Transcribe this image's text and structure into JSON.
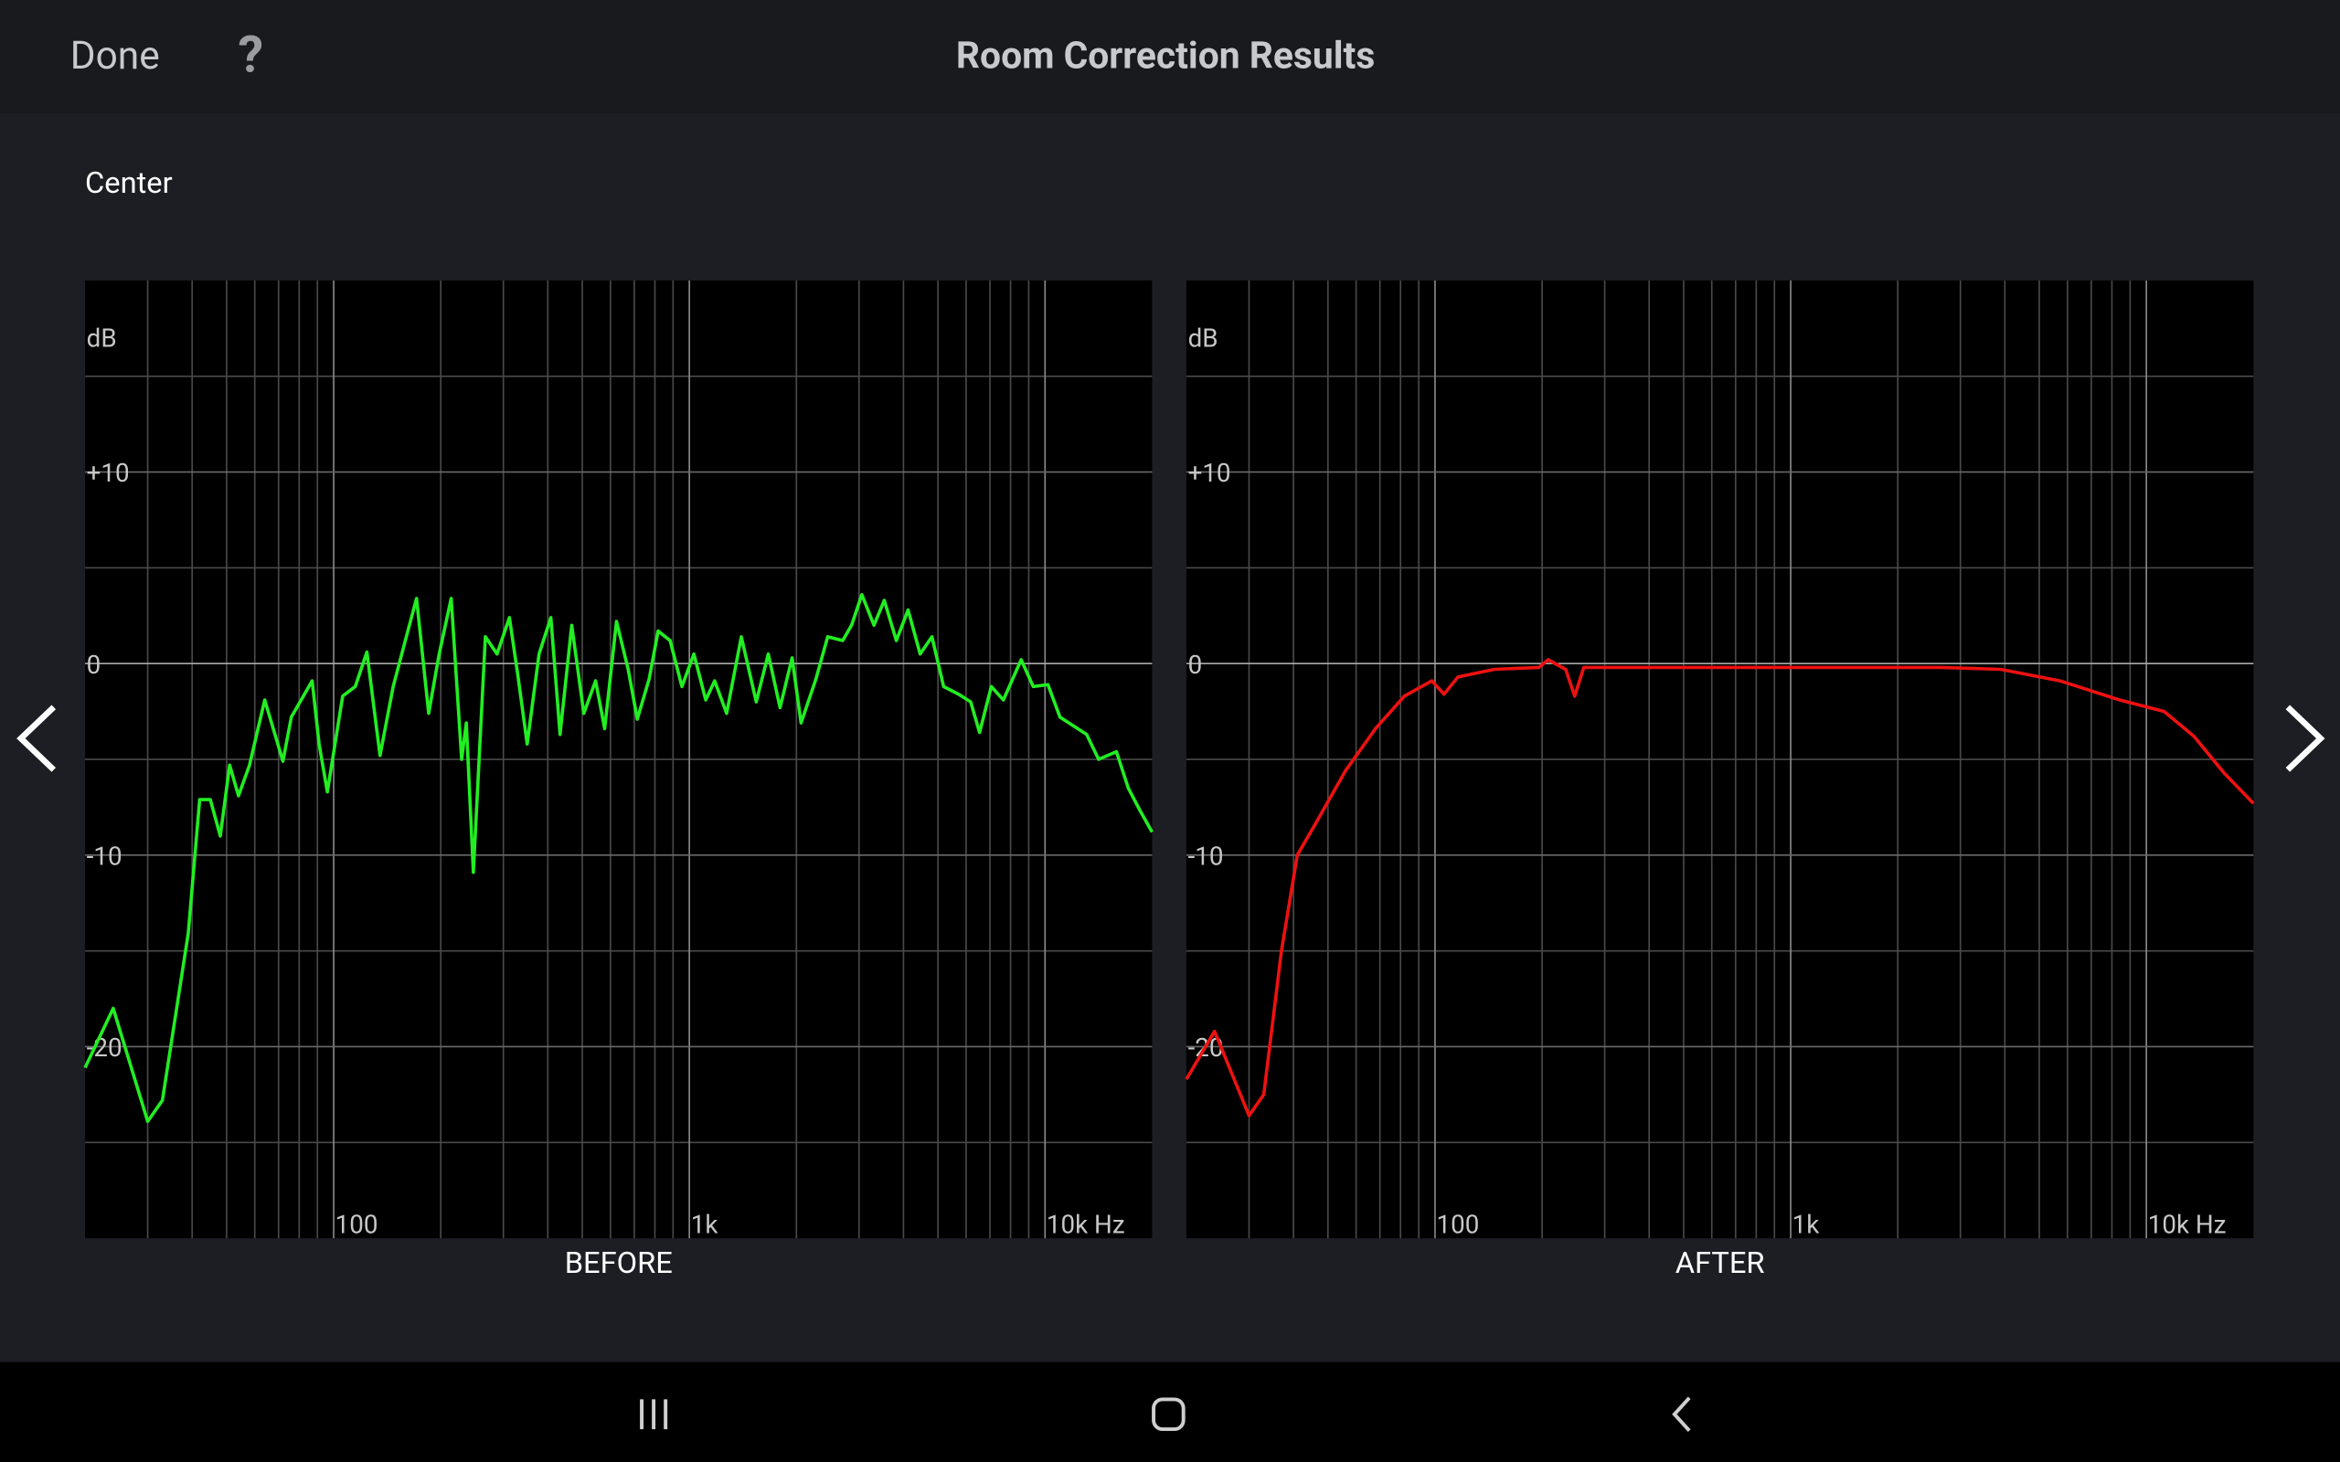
{
  "header": {
    "done": "Done",
    "help": "?",
    "title": "Room Correction Results"
  },
  "section": "Center",
  "chart_data": [
    {
      "type": "line",
      "title": "BEFORE",
      "y_label": "dB",
      "log_x": true,
      "color": "#22ee22",
      "xlim": [
        20,
        20000
      ],
      "ylim": [
        -30,
        20
      ],
      "xticks": [
        100,
        {
          "value": 1000,
          "label": "1k"
        },
        {
          "value": 10000,
          "label": "10k Hz"
        }
      ],
      "yticks": [
        {
          "value": 10,
          "label": "+10"
        },
        0,
        -10,
        -20
      ],
      "grid_x": [
        30,
        40,
        50,
        60,
        70,
        80,
        90,
        200,
        300,
        400,
        500,
        600,
        700,
        800,
        900,
        2000,
        3000,
        4000,
        5000,
        6000,
        7000,
        8000,
        9000
      ],
      "grid_y": [
        -25,
        -15,
        -5,
        5,
        15
      ],
      "x": [
        20,
        24,
        30,
        33,
        39,
        42,
        45,
        48,
        51,
        54,
        58,
        64,
        72,
        76,
        87,
        91,
        96,
        106,
        115,
        124,
        135,
        147,
        159,
        171,
        185,
        198,
        214,
        229,
        236,
        247,
        267,
        288,
        312,
        330,
        350,
        378,
        408,
        433,
        467,
        505,
        545,
        578,
        624,
        673,
        714,
        771,
        817,
        883,
        953,
        1030,
        1112,
        1178,
        1273,
        1400,
        1542,
        1667,
        1799,
        1945,
        2061,
        2270,
        2449,
        2698,
        2858,
        3055,
        3304,
        3532,
        3819,
        4121,
        4456,
        4808,
        5188,
        5715,
        6180,
        6546,
        7063,
        7638,
        8570,
        9265,
        10190,
        11020,
        12130,
        13090,
        14150,
        15880,
        17140,
        18530,
        20000
      ],
      "values": [
        -21.1,
        -18,
        -23.9,
        -22.8,
        -14.1,
        -7.1,
        -7.1,
        -9,
        -5.3,
        -6.9,
        -5.3,
        -1.9,
        -5.1,
        -2.8,
        -0.9,
        -4.2,
        -6.7,
        -1.7,
        -1.2,
        0.6,
        -4.8,
        -1.2,
        1.2,
        3.4,
        -2.6,
        0.5,
        3.4,
        -5,
        -3.1,
        -10.9,
        1.4,
        0.5,
        2.4,
        -0.7,
        -4.2,
        0.5,
        2.4,
        -3.7,
        2,
        -2.6,
        -0.9,
        -3.4,
        2.2,
        -0.3,
        -2.9,
        -0.8,
        1.7,
        1.2,
        -1.2,
        0.5,
        -1.9,
        -0.9,
        -2.6,
        1.4,
        -2,
        0.5,
        -2.3,
        0.3,
        -3.1,
        -0.8,
        1.4,
        1.2,
        2,
        3.6,
        2,
        3.3,
        1.2,
        2.8,
        0.5,
        1.4,
        -1.2,
        -1.6,
        -2,
        -3.6,
        -1.2,
        -1.9,
        0.2,
        -1.2,
        -1.1,
        -2.8,
        -3.3,
        -3.7,
        -5,
        -4.6,
        -6.5,
        -7.7,
        -8.8
      ]
    },
    {
      "type": "line",
      "title": "AFTER",
      "y_label": "dB",
      "log_x": true,
      "color": "#ee1111",
      "xlim": [
        20,
        20000
      ],
      "ylim": [
        -30,
        20
      ],
      "xticks": [
        100,
        {
          "value": 1000,
          "label": "1k"
        },
        {
          "value": 10000,
          "label": "10k Hz"
        }
      ],
      "yticks": [
        {
          "value": 10,
          "label": "+10"
        },
        0,
        -10,
        -20
      ],
      "grid_x": [
        30,
        40,
        50,
        60,
        70,
        80,
        90,
        200,
        300,
        400,
        500,
        600,
        700,
        800,
        900,
        2000,
        3000,
        4000,
        5000,
        6000,
        7000,
        8000,
        9000
      ],
      "grid_y": [
        -25,
        -15,
        -5,
        5,
        15
      ],
      "x": [
        20,
        24,
        30,
        33,
        37,
        41,
        46,
        56,
        68,
        82,
        98,
        106,
        116,
        147,
        196,
        208,
        233,
        247,
        262,
        385,
        1009,
        2648,
        3890,
        5715,
        8414,
        11220,
        13610,
        16520,
        20000
      ],
      "values": [
        -21.7,
        -19.2,
        -23.6,
        -22.5,
        -15,
        -10,
        -8.4,
        -5.6,
        -3.4,
        -1.7,
        -0.9,
        -1.6,
        -0.7,
        -0.3,
        -0.2,
        0.2,
        -0.3,
        -1.7,
        -0.2,
        -0.2,
        -0.2,
        -0.2,
        -0.3,
        -0.9,
        -1.9,
        -2.5,
        -3.8,
        -5.7,
        -7.3
      ]
    }
  ]
}
